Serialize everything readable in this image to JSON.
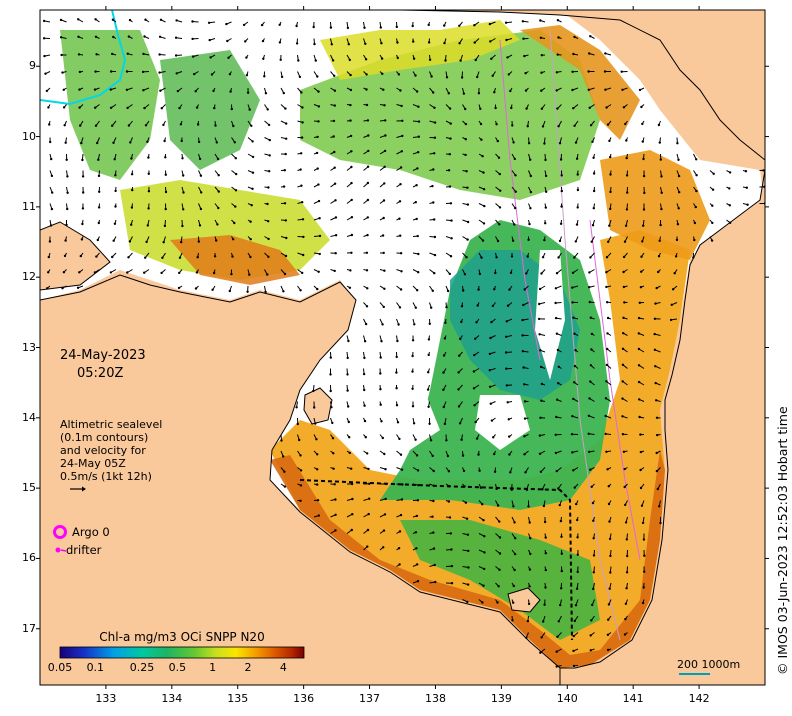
{
  "map": {
    "date_line1": "24-May-2023",
    "date_line2": "05:20Z",
    "lat_ticks": [
      {
        "label": "9",
        "lat": -9
      },
      {
        "label": "10",
        "lat": -10
      },
      {
        "label": "11",
        "lat": -11
      },
      {
        "label": "12",
        "lat": -12
      },
      {
        "label": "13",
        "lat": -13
      },
      {
        "label": "14",
        "lat": -14
      },
      {
        "label": "15",
        "lat": -15
      },
      {
        "label": "16",
        "lat": -16
      },
      {
        "label": "17",
        "lat": -17
      }
    ],
    "lon_ticks": [
      "133",
      "134",
      "135",
      "136",
      "137",
      "138",
      "139",
      "140",
      "141",
      "142"
    ],
    "lon_range": [
      132.0,
      143.0
    ],
    "lat_range": [
      -8.2,
      -17.8
    ],
    "altimetry_note": [
      "Altimetric sealevel",
      "(0.1m contours)",
      "and velocity for",
      "24-May 05Z",
      "0.5m/s (1kt 12h)"
    ],
    "legend": {
      "argo": "Argo 0",
      "drifter": "drifter"
    },
    "colorbar": {
      "title": "Chl-a mg/m3 OCi SNPP N20",
      "ticks": [
        "0.05",
        "0.1",
        "0.25",
        "0.5",
        "1",
        "2",
        "4"
      ],
      "tick_values": [
        0.05,
        0.1,
        0.25,
        0.5,
        1,
        2,
        4
      ],
      "range": [
        0.05,
        6
      ],
      "colors": [
        "#1a007a",
        "#1632c8",
        "#00a0e6",
        "#00c8a0",
        "#1eb464",
        "#64c832",
        "#c8e01e",
        "#fae600",
        "#f5a000",
        "#dc5a00",
        "#b42800",
        "#7a0000"
      ]
    },
    "scale_bar": {
      "labels": "200  1000m"
    },
    "credit": "© IMOS 03-Jun-2023 12:52:03 Hobart time",
    "colors": {
      "land": "#f9c89b",
      "ocean_white": "#ffffff",
      "coast": "#000000",
      "argo": "#ff00ff",
      "river": "#00d8e8",
      "scale": "#00a0b4"
    }
  }
}
